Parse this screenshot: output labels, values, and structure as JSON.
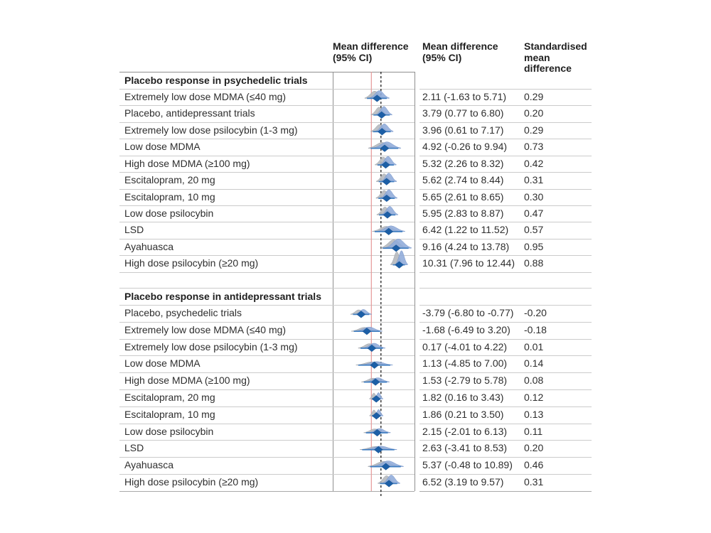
{
  "header": {
    "plot_col": "Mean difference\n(95% CI)",
    "value_col": "Mean difference\n(95% CI)",
    "smd_col": "Standardised\nmean\ndifference"
  },
  "colors": {
    "diamond": "#1d5fa6",
    "ci_line": "#3f7dc0",
    "violin_blue": "#8fabd9",
    "violin_gray": "#b6b9be",
    "zero_line_red": "#e59898",
    "dashed_line": "#1a1a1a",
    "grid": "#cbcbcb",
    "box_border": "#8f8f8f"
  },
  "chart_data": {
    "type": "forest",
    "x_axis": {
      "range_approx": [
        -13,
        15
      ],
      "zero_ref_line": 0,
      "dashed_ref_line": 3.55,
      "tick_labels_visible": false
    },
    "legend_position": "none",
    "sections": [
      {
        "title": "Placebo response in psychedelic trials",
        "rows": [
          {
            "label": "Extremely low dose MDMA (≤40 mg)",
            "mean": 2.11,
            "ci_lo": -1.63,
            "ci_hi": 5.71,
            "value_text": "2.11 (-1.63 to 5.71)",
            "smd_text": "0.29",
            "peak": 11
          },
          {
            "label": "Placebo, antidepressant trials",
            "mean": 3.79,
            "ci_lo": 0.77,
            "ci_hi": 6.8,
            "value_text": "3.79 (0.77 to 6.80)",
            "smd_text": "0.20",
            "peak": 12
          },
          {
            "label": "Extremely low dose psilocybin (1-3 mg)",
            "mean": 3.96,
            "ci_lo": 0.61,
            "ci_hi": 7.17,
            "value_text": "3.96 (0.61 to 7.17)",
            "smd_text": "0.29",
            "peak": 11
          },
          {
            "label": "Low dose MDMA",
            "mean": 4.92,
            "ci_lo": -0.26,
            "ci_hi": 9.94,
            "value_text": "4.92 (-0.26 to 9.94)",
            "smd_text": "0.73",
            "peak": 9
          },
          {
            "label": "High dose MDMA (≥100 mg)",
            "mean": 5.32,
            "ci_lo": 2.26,
            "ci_hi": 8.32,
            "value_text": "5.32 (2.26 to 8.32)",
            "smd_text": "0.42",
            "peak": 12
          },
          {
            "label": "Escitalopram, 20 mg",
            "mean": 5.62,
            "ci_lo": 2.74,
            "ci_hi": 8.44,
            "value_text": "5.62 (2.74 to 8.44)",
            "smd_text": "0.31",
            "peak": 12
          },
          {
            "label": "Escitalopram, 10 mg",
            "mean": 5.65,
            "ci_lo": 2.61,
            "ci_hi": 8.65,
            "value_text": "5.65 (2.61 to 8.65)",
            "smd_text": "0.30",
            "peak": 12
          },
          {
            "label": "Low dose psilocybin",
            "mean": 5.95,
            "ci_lo": 2.83,
            "ci_hi": 8.87,
            "value_text": "5.95 (2.83 to 8.87)",
            "smd_text": "0.47",
            "peak": 12
          },
          {
            "label": "LSD",
            "mean": 6.42,
            "ci_lo": 1.22,
            "ci_hi": 11.52,
            "value_text": "6.42 (1.22 to 11.52)",
            "smd_text": "0.57",
            "peak": 8
          },
          {
            "label": "Ayahuasca",
            "mean": 9.16,
            "ci_lo": 4.24,
            "ci_hi": 13.78,
            "value_text": "9.16 (4.24 to 13.78)",
            "smd_text": "0.95",
            "peak": 13
          },
          {
            "label": "High dose psilocybin (≥20 mg)",
            "mean": 10.31,
            "ci_lo": 7.96,
            "ci_hi": 12.44,
            "value_text": "10.31 (7.96 to 12.44)",
            "smd_text": "0.88",
            "peak": 20
          }
        ]
      },
      {
        "title": "Placebo response in antidepressant trials",
        "rows": [
          {
            "label": "Placebo, psychedelic trials",
            "mean": -3.79,
            "ci_lo": -6.8,
            "ci_hi": -0.77,
            "value_text": "-3.79 (-6.80 to -0.77)",
            "smd_text": "-0.20",
            "peak": 7
          },
          {
            "label": "Extremely low dose MDMA (≤40 mg)",
            "mean": -1.68,
            "ci_lo": -6.49,
            "ci_hi": 3.2,
            "value_text": "-1.68 (-6.49 to 3.20)",
            "smd_text": "-0.18",
            "peak": 6
          },
          {
            "label": "Extremely low dose psilocybin (1-3 mg)",
            "mean": 0.17,
            "ci_lo": -4.01,
            "ci_hi": 4.22,
            "value_text": "0.17 (-4.01 to 4.22)",
            "smd_text": "0.01",
            "peak": 7
          },
          {
            "label": "Low dose MDMA",
            "mean": 1.13,
            "ci_lo": -4.85,
            "ci_hi": 7.0,
            "value_text": "1.13 (-4.85 to 7.00)",
            "smd_text": "0.14",
            "peak": 5
          },
          {
            "label": "High dose MDMA (≥100 mg)",
            "mean": 1.53,
            "ci_lo": -2.79,
            "ci_hi": 5.78,
            "value_text": "1.53 (-2.79 to 5.78)",
            "smd_text": "0.08",
            "peak": 6
          },
          {
            "label": "Escitalopram, 20 mg",
            "mean": 1.82,
            "ci_lo": 0.16,
            "ci_hi": 3.43,
            "value_text": "1.82 (0.16 to 3.43)",
            "smd_text": "0.12",
            "peak": 9
          },
          {
            "label": "Escitalopram, 10 mg",
            "mean": 1.86,
            "ci_lo": 0.21,
            "ci_hi": 3.5,
            "value_text": "1.86 (0.21 to 3.50)",
            "smd_text": "0.13",
            "peak": 9
          },
          {
            "label": "Low dose psilocybin",
            "mean": 2.15,
            "ci_lo": -2.01,
            "ci_hi": 6.13,
            "value_text": "2.15 (-2.01 to 6.13)",
            "smd_text": "0.11",
            "peak": 6
          },
          {
            "label": "LSD",
            "mean": 2.63,
            "ci_lo": -3.41,
            "ci_hi": 8.53,
            "value_text": "2.63 (-3.41 to 8.53)",
            "smd_text": "0.20",
            "peak": 5
          },
          {
            "label": "Ayahuasca",
            "mean": 5.37,
            "ci_lo": -0.48,
            "ci_hi": 10.89,
            "value_text": "5.37 (-0.48 to 10.89)",
            "smd_text": "0.46",
            "peak": 8
          },
          {
            "label": "High dose psilocybin (≥20 mg)",
            "mean": 6.52,
            "ci_lo": 3.19,
            "ci_hi": 9.57,
            "value_text": "6.52 (3.19 to 9.57)",
            "smd_text": "0.31",
            "peak": 12
          }
        ]
      }
    ]
  }
}
